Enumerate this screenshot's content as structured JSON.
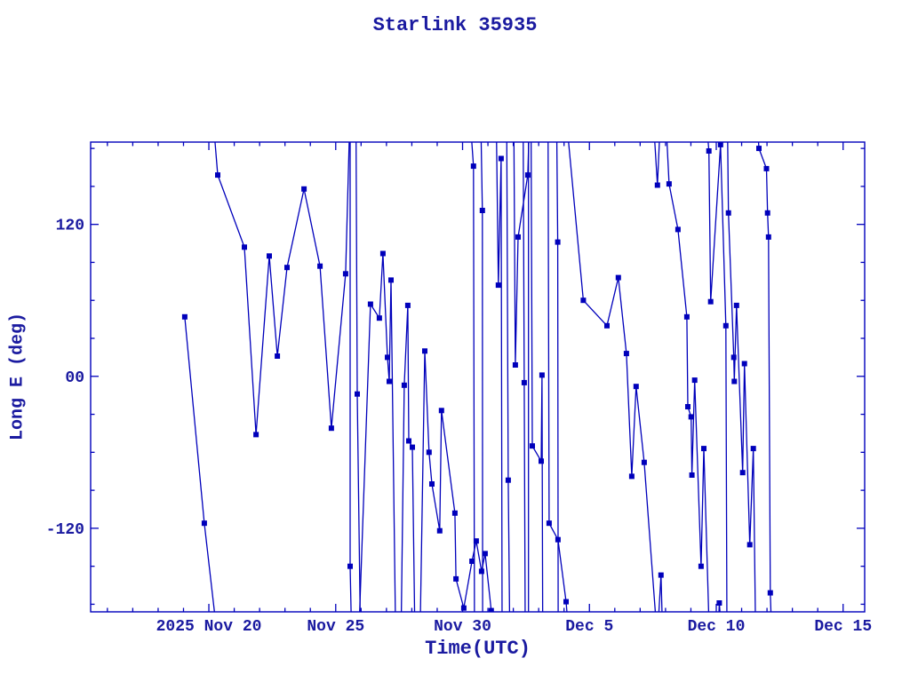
{
  "title": "Starlink 35935",
  "axes": {
    "xlabel": "Time(UTC)",
    "ylabel": "Long E (deg)"
  },
  "chart_data": {
    "type": "line",
    "title": "Starlink 35935",
    "xlabel": "Time(UTC)",
    "ylabel": "Long E (deg)",
    "x_unit": "days relative to 2025 Nov 20 00:00 UTC",
    "xlim": [
      -4.66,
      25.85
    ],
    "ylim": [
      -186,
      185
    ],
    "grid": false,
    "legend": "none",
    "x_major_ticks": [
      {
        "d": 0,
        "label": "2025 Nov 20"
      },
      {
        "d": 5,
        "label": "Nov 25"
      },
      {
        "d": 10,
        "label": "Nov 30"
      },
      {
        "d": 15,
        "label": "Dec  5"
      },
      {
        "d": 20,
        "label": "Dec 10"
      },
      {
        "d": 25,
        "label": "Dec 15"
      }
    ],
    "x_minor_step_days": 1,
    "y_major_ticks": [
      {
        "v": 120,
        "label": "120"
      },
      {
        "v": 0,
        "label": "00"
      },
      {
        "v": -120,
        "label": "-120"
      }
    ],
    "y_minor_step": 30,
    "marker": "filled-square",
    "marker_size": 5,
    "colors": {
      "line": "#0000bb",
      "text": "#1a1aa0",
      "frame": "#0000bb",
      "background": "#ffffff"
    },
    "note": "Satellite sub-point east longitude vs time; |value|>=195 entries are off-scale sentinels reproducing the clipped wrap-around vertical lines of the original plot.",
    "series": [
      {
        "name": "seg-01",
        "points": [
          [
            -0.95,
            47
          ],
          [
            -0.18,
            -116
          ],
          [
            0.3,
            -200
          ]
        ]
      },
      {
        "name": "seg-02",
        "points": [
          [
            0.18,
            200
          ],
          [
            0.35,
            159
          ],
          [
            1.4,
            102
          ],
          [
            1.86,
            -46
          ],
          [
            2.38,
            95
          ],
          [
            2.7,
            16
          ],
          [
            3.08,
            86
          ],
          [
            3.75,
            148
          ],
          [
            4.38,
            87
          ],
          [
            4.83,
            -41
          ],
          [
            5.39,
            81
          ],
          [
            5.55,
            200
          ]
        ]
      },
      {
        "name": "seg-03",
        "points": [
          [
            5.57,
            200
          ],
          [
            5.57,
            -150
          ],
          [
            5.62,
            -200
          ]
        ]
      },
      {
        "name": "seg-04",
        "points": [
          [
            5.8,
            200
          ],
          [
            5.85,
            -14
          ],
          [
            5.97,
            -200
          ]
        ]
      },
      {
        "name": "seg-05",
        "points": [
          [
            5.92,
            -200
          ],
          [
            6.37,
            57
          ],
          [
            6.72,
            46
          ],
          [
            6.86,
            97
          ],
          [
            7.04,
            15
          ],
          [
            7.11,
            -4
          ],
          [
            7.18,
            76
          ],
          [
            7.36,
            -200
          ]
        ]
      },
      {
        "name": "seg-06",
        "points": [
          [
            7.58,
            -200
          ],
          [
            7.7,
            -7
          ],
          [
            7.84,
            56
          ],
          [
            7.88,
            -51
          ],
          [
            8.02,
            -56
          ],
          [
            8.12,
            -200
          ]
        ]
      },
      {
        "name": "seg-07",
        "points": [
          [
            8.33,
            -200
          ],
          [
            8.51,
            20
          ],
          [
            8.68,
            -60
          ],
          [
            8.79,
            -85
          ],
          [
            9.1,
            -122
          ],
          [
            9.17,
            -27
          ],
          [
            9.7,
            -108
          ],
          [
            9.74,
            -160
          ],
          [
            10.05,
            -183
          ],
          [
            10.37,
            -146
          ],
          [
            10.54,
            -130
          ],
          [
            10.75,
            -154
          ],
          [
            10.89,
            -140
          ],
          [
            11.13,
            -185
          ]
        ]
      },
      {
        "name": "seg-08",
        "points": [
          [
            10.31,
            200
          ],
          [
            10.43,
            166
          ],
          [
            10.47,
            -200
          ]
        ]
      },
      {
        "name": "seg-09",
        "points": [
          [
            10.72,
            200
          ],
          [
            10.78,
            131
          ],
          [
            10.79,
            -200
          ]
        ]
      },
      {
        "name": "seg-10",
        "points": [
          [
            11.33,
            200
          ],
          [
            11.41,
            72
          ],
          [
            11.52,
            172
          ],
          [
            11.56,
            -200
          ]
        ]
      },
      {
        "name": "seg-11",
        "points": [
          [
            11.74,
            200
          ],
          [
            11.8,
            -82
          ],
          [
            11.86,
            -200
          ]
        ]
      },
      {
        "name": "seg-12",
        "points": [
          [
            12.02,
            200
          ],
          [
            12.08,
            9
          ],
          [
            12.19,
            110
          ],
          [
            12.57,
            159
          ],
          [
            12.63,
            200
          ]
        ]
      },
      {
        "name": "seg-13",
        "points": [
          [
            12.39,
            200
          ],
          [
            12.43,
            -5
          ],
          [
            12.47,
            -200
          ]
        ]
      },
      {
        "name": "seg-14",
        "points": [
          [
            12.6,
            200
          ],
          [
            12.6,
            -200
          ]
        ]
      },
      {
        "name": "seg-15",
        "points": [
          [
            12.7,
            200
          ],
          [
            12.75,
            -55
          ],
          [
            13.1,
            -67
          ],
          [
            13.13,
            1
          ],
          [
            13.16,
            -200
          ]
        ]
      },
      {
        "name": "seg-16",
        "points": [
          [
            13.71,
            200
          ],
          [
            13.75,
            106
          ],
          [
            13.77,
            -200
          ]
        ]
      },
      {
        "name": "seg-17",
        "points": [
          [
            13.37,
            200
          ],
          [
            13.41,
            -116
          ],
          [
            13.76,
            -129
          ],
          [
            14.08,
            -178
          ],
          [
            14.17,
            -200
          ]
        ]
      },
      {
        "name": "seg-18",
        "points": [
          [
            14.11,
            200
          ],
          [
            14.76,
            60
          ],
          [
            15.69,
            40
          ],
          [
            16.14,
            78
          ],
          [
            16.46,
            18
          ],
          [
            16.67,
            -79
          ],
          [
            16.84,
            -8
          ],
          [
            17.16,
            -68
          ],
          [
            17.65,
            -200
          ]
        ]
      },
      {
        "name": "seg-19",
        "points": [
          [
            17.7,
            -200
          ],
          [
            17.82,
            -157
          ],
          [
            17.88,
            -200
          ]
        ]
      },
      {
        "name": "seg-20",
        "points": [
          [
            17.53,
            200
          ],
          [
            17.68,
            151
          ],
          [
            17.79,
            200
          ]
        ]
      },
      {
        "name": "seg-21",
        "points": [
          [
            18.02,
            200
          ],
          [
            18.14,
            152
          ],
          [
            18.49,
            116
          ],
          [
            18.84,
            47
          ],
          [
            18.88,
            -24
          ],
          [
            19.01,
            -32
          ],
          [
            19.04,
            -78
          ],
          [
            19.15,
            -3
          ],
          [
            19.4,
            -150
          ],
          [
            19.51,
            -57
          ],
          [
            19.72,
            -200
          ]
        ]
      },
      {
        "name": "seg-22",
        "points": [
          [
            19.62,
            200
          ],
          [
            19.71,
            178
          ],
          [
            19.78,
            59
          ],
          [
            20.17,
            183
          ],
          [
            20.38,
            40
          ],
          [
            20.42,
            -200
          ]
        ]
      },
      {
        "name": "seg-23",
        "points": [
          [
            20.08,
            -200
          ],
          [
            20.12,
            -179
          ],
          [
            20.2,
            -200
          ]
        ]
      },
      {
        "name": "seg-24",
        "points": [
          [
            20.44,
            200
          ],
          [
            20.48,
            129
          ],
          [
            20.69,
            15
          ],
          [
            20.71,
            -4
          ],
          [
            20.8,
            56
          ],
          [
            21.04,
            -76
          ],
          [
            21.11,
            10
          ],
          [
            21.32,
            -133
          ],
          [
            21.46,
            -57
          ],
          [
            21.55,
            -200
          ]
        ]
      },
      {
        "name": "seg-25",
        "points": [
          [
            21.62,
            200
          ],
          [
            21.68,
            180
          ],
          [
            21.98,
            164
          ],
          [
            22.02,
            129
          ],
          [
            22.06,
            110
          ],
          [
            22.13,
            -171
          ],
          [
            22.18,
            -200
          ]
        ]
      }
    ]
  }
}
